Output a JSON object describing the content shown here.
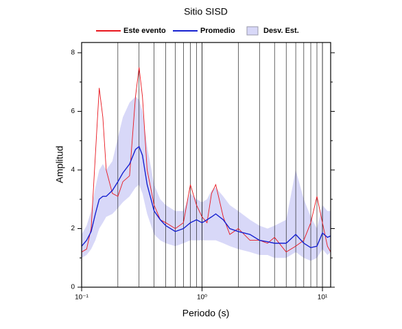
{
  "chart_data": {
    "type": "line",
    "title": "Sitio SISD",
    "x_label": "Periodo (s)",
    "y_label": "Amplitud",
    "log_x": true,
    "grid": "x",
    "x": [
      0.1,
      0.11,
      0.12,
      0.13,
      0.14,
      0.15,
      0.16,
      0.18,
      0.2,
      0.22,
      0.25,
      0.28,
      0.3,
      0.32,
      0.35,
      0.4,
      0.45,
      0.5,
      0.6,
      0.7,
      0.8,
      0.9,
      1.0,
      1.1,
      1.2,
      1.3,
      1.5,
      1.7,
      2,
      2.5,
      3,
      3.5,
      4,
      5,
      6,
      7,
      8,
      9,
      10,
      11,
      11.7
    ],
    "series": [
      {
        "name": "Este evento",
        "color": "#e8141c",
        "values": [
          1.2,
          1.3,
          2.0,
          4.5,
          6.8,
          5.8,
          4.0,
          3.2,
          3.1,
          3.6,
          3.8,
          6.5,
          7.5,
          6.5,
          4.0,
          2.8,
          2.3,
          2.2,
          2.0,
          2.2,
          3.5,
          2.8,
          2.4,
          2.2,
          3.2,
          3.5,
          2.4,
          1.8,
          2.0,
          1.6,
          1.6,
          1.5,
          1.7,
          1.2,
          1.4,
          1.6,
          2.2,
          3.1,
          2.2,
          1.4,
          1.2
        ]
      },
      {
        "name": "Promedio",
        "color": "#1520d0",
        "values": [
          1.4,
          1.6,
          1.9,
          2.5,
          3.0,
          3.1,
          3.1,
          3.3,
          3.6,
          3.9,
          4.2,
          4.7,
          4.8,
          4.5,
          3.5,
          2.6,
          2.3,
          2.1,
          1.9,
          2.0,
          2.2,
          2.3,
          2.2,
          2.3,
          2.4,
          2.5,
          2.3,
          2.0,
          1.9,
          1.8,
          1.6,
          1.55,
          1.5,
          1.5,
          1.8,
          1.5,
          1.35,
          1.4,
          1.85,
          1.7,
          1.75
        ]
      },
      {
        "name": "Desv. Est.",
        "color": "#d8d8f8",
        "lower": [
          1.0,
          1.1,
          1.3,
          1.6,
          2.0,
          2.2,
          2.4,
          2.5,
          2.7,
          2.9,
          3.1,
          3.4,
          3.5,
          3.2,
          2.5,
          1.8,
          1.6,
          1.5,
          1.4,
          1.5,
          1.6,
          1.6,
          1.6,
          1.6,
          1.6,
          1.6,
          1.5,
          1.4,
          1.3,
          1.2,
          1.1,
          1.1,
          1.0,
          1.0,
          1.2,
          1.0,
          0.9,
          1.0,
          1.3,
          1.1,
          1.2
        ],
        "upper": [
          1.8,
          2.1,
          2.6,
          3.4,
          4.0,
          4.2,
          4.0,
          4.3,
          5.1,
          5.8,
          6.3,
          6.5,
          6.4,
          6.0,
          4.8,
          3.5,
          3.0,
          2.8,
          2.6,
          2.6,
          3.2,
          3.0,
          2.9,
          3.0,
          3.3,
          3.4,
          3.1,
          2.8,
          2.6,
          2.3,
          2.1,
          2.0,
          2.1,
          2.3,
          4.0,
          3.0,
          2.4,
          2.0,
          2.8,
          2.6,
          2.6
        ]
      }
    ],
    "xlim": [
      0.1,
      11.7
    ],
    "xticks": [
      {
        "value": 0.1,
        "label": "10⁻¹"
      },
      {
        "value": 1,
        "label": "10⁰"
      },
      {
        "value": 10,
        "label": "10¹"
      }
    ],
    "xminor": [
      0.2,
      0.3,
      0.4,
      0.5,
      0.6,
      0.7,
      0.8,
      0.9,
      2,
      3,
      4,
      5,
      6,
      7,
      8,
      9
    ],
    "ylim": [
      0,
      8.35
    ],
    "yticks": [
      0,
      2,
      4,
      6,
      8
    ],
    "yminor": [
      1,
      3,
      5,
      7
    ]
  }
}
